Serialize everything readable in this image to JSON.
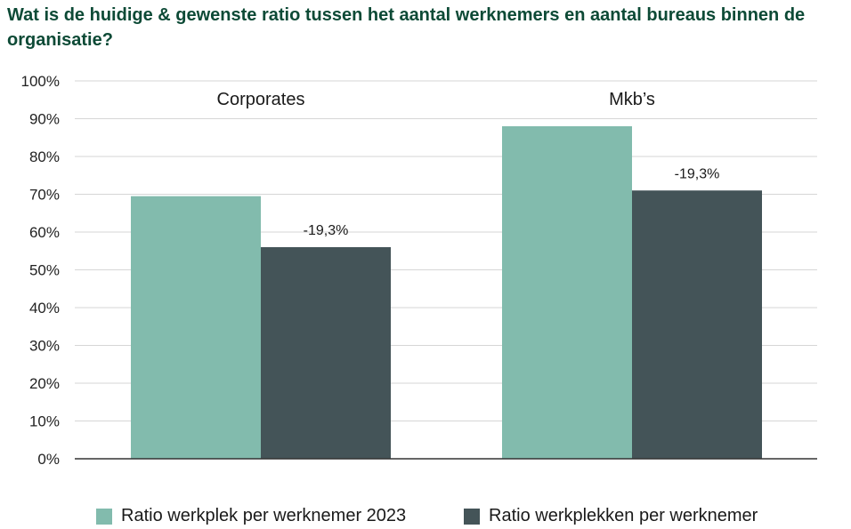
{
  "title": "Wat is de huidige & gewenste ratio tussen het aantal werknemers en aantal bureaus binnen de organisatie?",
  "chart_data": {
    "type": "bar",
    "title": "Wat is de huidige & gewenste ratio tussen het aantal werknemers en aantal bureaus binnen de organisatie?",
    "categories": [
      "Corporates",
      "Mkb’s"
    ],
    "series": [
      {
        "name": "Ratio werkplek per werknemer 2023",
        "values": [
          69.5,
          88
        ],
        "color": "#82bbad"
      },
      {
        "name": "Ratio werkplekken per werknemer",
        "values": [
          56,
          71
        ],
        "color": "#445458"
      }
    ],
    "annotations": [
      "-19,3%",
      "-19,3%"
    ],
    "yticks": [
      "0%",
      "10%",
      "20%",
      "30%",
      "40%",
      "50%",
      "60%",
      "70%",
      "80%",
      "90%",
      "100%"
    ],
    "ylim": [
      0,
      100
    ],
    "xlabel": "",
    "ylabel": "",
    "grid": true,
    "legend_position": "bottom"
  }
}
